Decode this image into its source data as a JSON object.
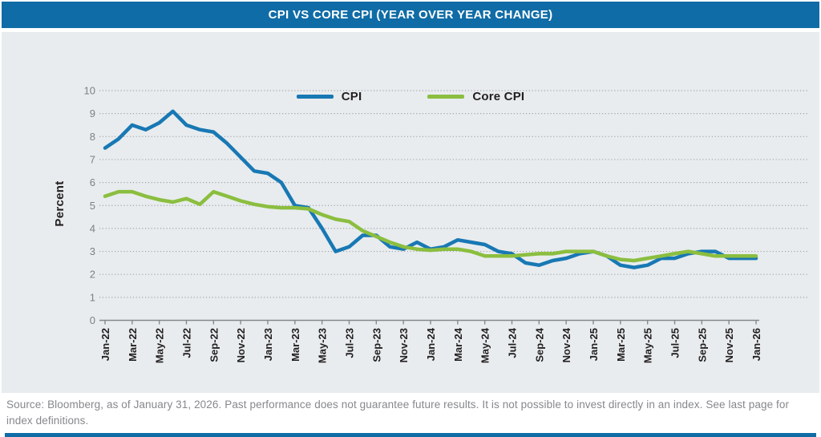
{
  "title_bar": {
    "title": "CPI VS CORE CPI (YEAR OVER YEAR CHANGE)"
  },
  "colors": {
    "title_bar_bg": "#0f6ca6",
    "panel_bg": "#e8ecee",
    "cpi_line": "#1878b4",
    "core_cpi_line": "#8bbe3f",
    "gridline": "#a2a6aa",
    "axis": "#85888c",
    "y_tick_text": "#7d8084",
    "x_tick_text": "#231f20",
    "footer_text": "#85888b"
  },
  "chart_data": {
    "type": "line",
    "title": "CPI VS CORE CPI (YEAR OVER YEAR CHANGE)",
    "xlabel": "",
    "ylabel": "Percent",
    "ylim": [
      0,
      10
    ],
    "y_ticks": [
      0,
      1,
      2,
      3,
      4,
      5,
      6,
      7,
      8,
      9,
      10
    ],
    "x_tick_step": 2,
    "grid": "horizontal-dotted",
    "legend_position": "top-center",
    "months": [
      "Jan-22",
      "Feb-22",
      "Mar-22",
      "Apr-22",
      "May-22",
      "Jun-22",
      "Jul-22",
      "Aug-22",
      "Sep-22",
      "Oct-22",
      "Nov-22",
      "Dec-22",
      "Jan-23",
      "Feb-23",
      "Mar-23",
      "Apr-23",
      "May-23",
      "Jun-23",
      "Jul-23",
      "Aug-23",
      "Sep-23",
      "Oct-23",
      "Nov-23",
      "Dec-23",
      "Jan-24",
      "Feb-24",
      "Mar-24",
      "Apr-24",
      "May-24",
      "Jun-24",
      "Jul-24",
      "Aug-24",
      "Sep-24",
      "Oct-24",
      "Nov-24",
      "Dec-24",
      "Jan-25",
      "Feb-25",
      "Mar-25",
      "Apr-25",
      "May-25",
      "Jun-25",
      "Jul-25",
      "Aug-25",
      "Sep-25",
      "Oct-25",
      "Nov-25",
      "Dec-25",
      "Jan-26"
    ],
    "series": [
      {
        "name": "CPI",
        "color": "#1878b4",
        "values": [
          7.5,
          7.9,
          8.5,
          8.3,
          8.6,
          9.1,
          8.5,
          8.3,
          8.2,
          7.7,
          7.1,
          6.5,
          6.4,
          6.0,
          5.0,
          4.9,
          4.0,
          3.0,
          3.2,
          3.7,
          3.7,
          3.2,
          3.1,
          3.4,
          3.1,
          3.2,
          3.5,
          3.4,
          3.3,
          3.0,
          2.9,
          2.5,
          2.4,
          2.6,
          2.7,
          2.9,
          3.0,
          2.8,
          2.4,
          2.3,
          2.4,
          2.7,
          2.7,
          2.9,
          3.0,
          3.0,
          2.7,
          2.7,
          2.7
        ]
      },
      {
        "name": "Core CPI",
        "color": "#8bbe3f",
        "values": [
          5.4,
          5.6,
          5.6,
          5.4,
          5.25,
          5.15,
          5.3,
          5.05,
          5.6,
          5.4,
          5.2,
          5.05,
          4.95,
          4.9,
          4.9,
          4.85,
          4.6,
          4.4,
          4.3,
          3.9,
          3.65,
          3.4,
          3.2,
          3.1,
          3.05,
          3.1,
          3.1,
          3.0,
          2.8,
          2.8,
          2.8,
          2.85,
          2.9,
          2.9,
          3.0,
          3.0,
          3.0,
          2.8,
          2.65,
          2.6,
          2.7,
          2.8,
          2.9,
          3.0,
          2.9,
          2.8,
          2.8,
          2.8,
          2.8
        ]
      }
    ]
  },
  "footer": {
    "source_text": "Source: Bloomberg, as of January 31, 2026. Past performance does not guarantee future results. It is not possible to invest directly in an index. See last page for index definitions."
  }
}
